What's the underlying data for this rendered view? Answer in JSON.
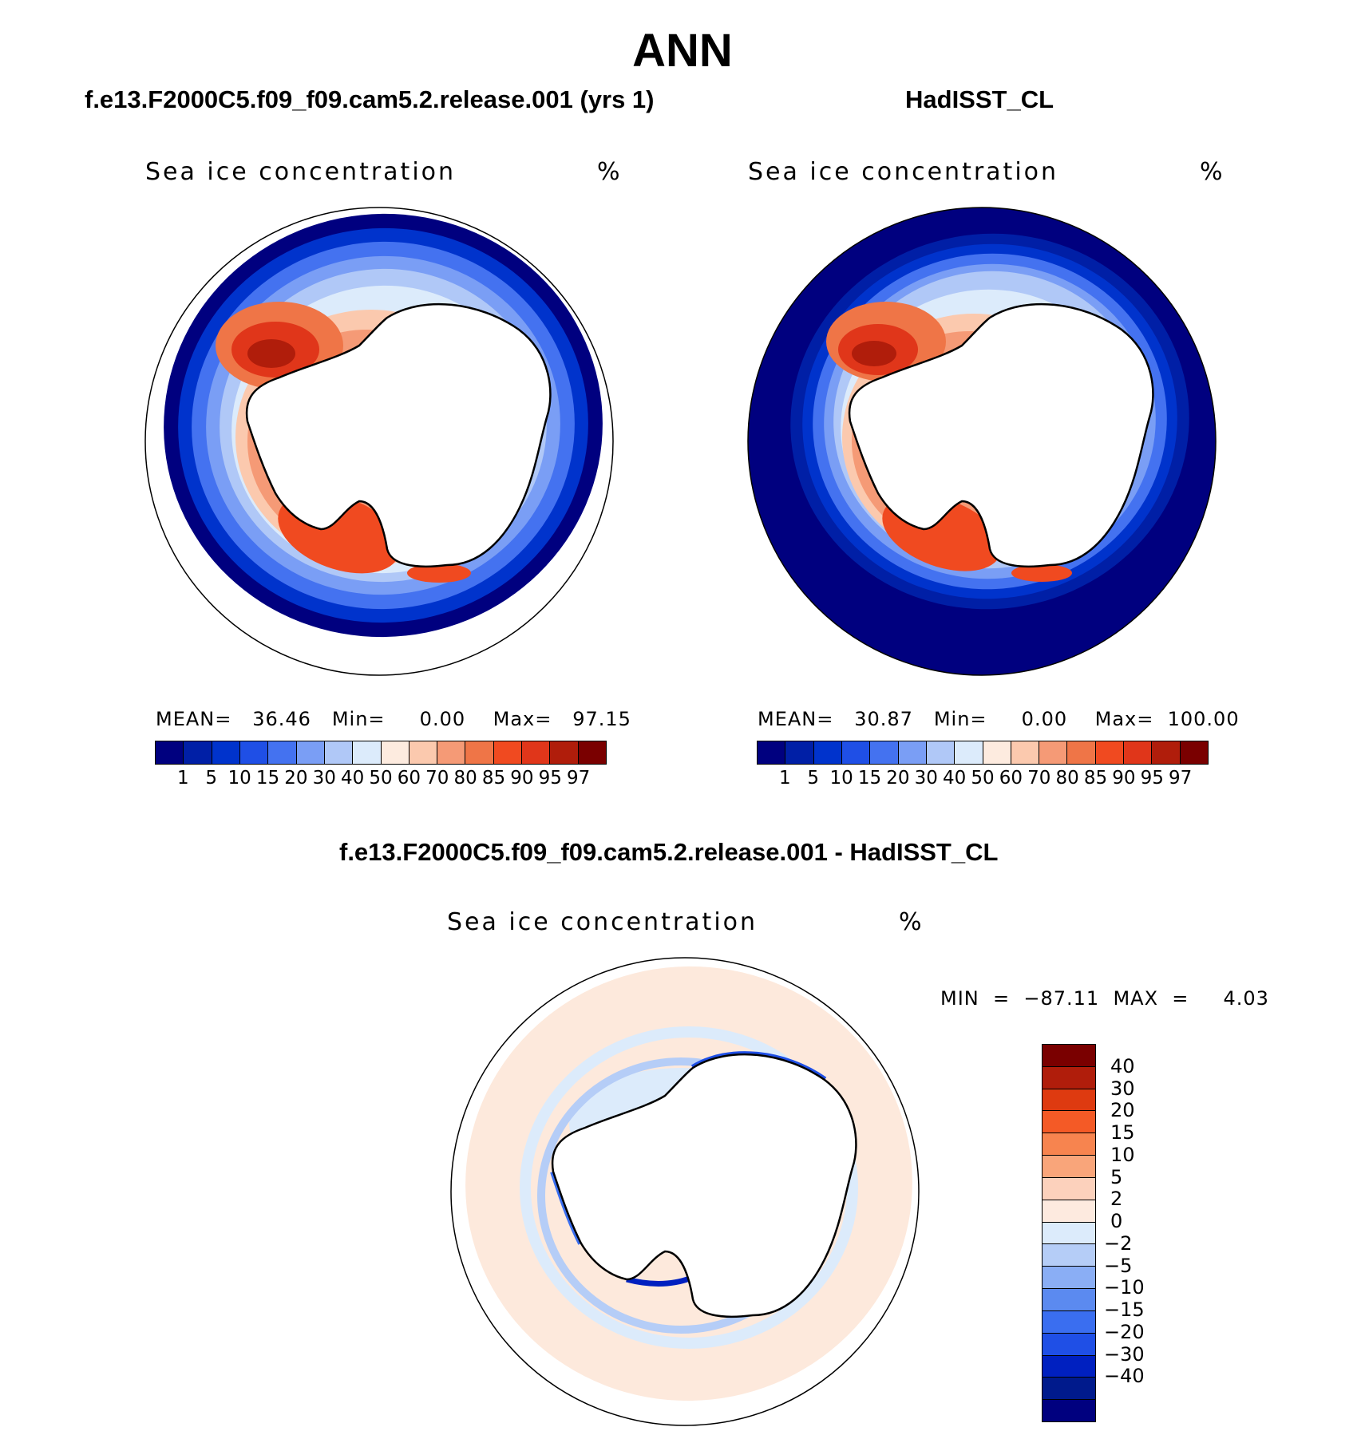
{
  "title": "ANN",
  "panels": [
    {
      "id": "model",
      "title": "f.e13.F2000C5.f09_f09.cam5.2.release.001 (yrs 1)",
      "variable": "Sea ice concentration",
      "units": "%",
      "stats_text": "MEAN=   36.46   Min=     0.00    Max=   97.15",
      "stats": {
        "mean": 36.46,
        "min": 0.0,
        "max": 97.15
      }
    },
    {
      "id": "obs",
      "title": "HadISST_CL",
      "variable": "Sea ice concentration",
      "units": "%",
      "stats_text": "MEAN=   30.87   Min=     0.00    Max=  100.00",
      "stats": {
        "mean": 30.87,
        "min": 0.0,
        "max": 100.0
      }
    }
  ],
  "diff": {
    "title": "f.e13.F2000C5.f09_f09.cam5.2.release.001 - HadISST_CL",
    "variable": "Sea ice concentration",
    "units": "%",
    "minmax_text": "MIN  =  −87.11  MAX  =     4.03",
    "stats": {
      "min": -87.11,
      "max": 4.03
    }
  },
  "colorbar_main": {
    "colors": [
      "#00007f",
      "#001fa6",
      "#0033cc",
      "#1f4fe6",
      "#4472f0",
      "#7a9ef5",
      "#b0c8f7",
      "#dcebfb",
      "#fdebdf",
      "#fbc9ae",
      "#f59a76",
      "#ef7547",
      "#f04a20",
      "#e0361a",
      "#b01d0b",
      "#7a0000"
    ],
    "labels": [
      "1",
      "5",
      "10",
      "15",
      "20",
      "30",
      "40",
      "50",
      "60",
      "70",
      "80",
      "85",
      "90",
      "95",
      "97"
    ]
  },
  "colorbar_diff": {
    "colors": [
      "#7a0000",
      "#b01d0b",
      "#de3a10",
      "#f45a26",
      "#f7844f",
      "#f9a57a",
      "#fcd1bc",
      "#fdeadf",
      "#dcebfb",
      "#b5cdf7",
      "#8aaef5",
      "#5b8af0",
      "#3a6ef0",
      "#1f4fe6",
      "#0020c0",
      "#001a8c",
      "#00007f"
    ],
    "labels": [
      "40",
      "30",
      "20",
      "15",
      "10",
      "5",
      "2",
      "0",
      "−2",
      "−5",
      "−10",
      "−15",
      "−20",
      "−30",
      "−40"
    ]
  },
  "map_colors": {
    "ocean_bg": "#ffffff",
    "diff_fill": "#fde9dc",
    "diff_neg": "#d6e6fb",
    "land": "#ffffff",
    "coast": "#000000"
  }
}
